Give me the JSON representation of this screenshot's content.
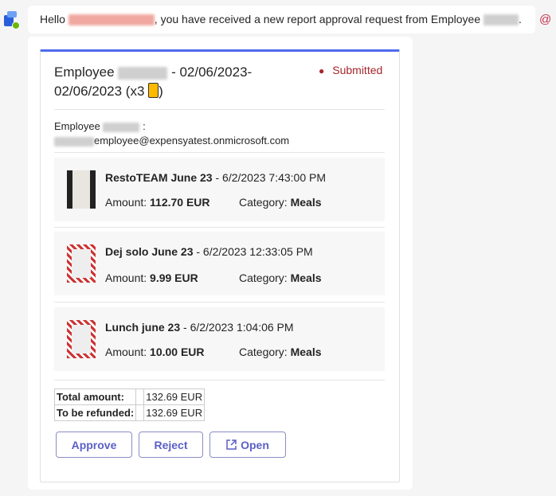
{
  "message": {
    "greeting": "Hello",
    "text": ", you have received a new report approval request from Employee",
    "end": ".",
    "mention_icon": "@"
  },
  "report": {
    "title_prefix": "Employee",
    "title_dates": " - 02/06/2023-02/06/2023 (x3",
    "title_end": ")",
    "status": "Submitted",
    "status_color": "#a4262c",
    "employee_label": "Employee",
    "employee_colon": ":",
    "email_suffix": "employee@expensyatest.onmicrosoft.com",
    "expenses": [
      {
        "name": "RestoTEAM June 23",
        "date": " - 6/2/2023 7:43:00 PM",
        "amount_label": "Amount:",
        "amount": "112.70 EUR",
        "category_label": "Category:",
        "category": "Meals"
      },
      {
        "name": "Dej solo June 23",
        "date": " - 6/2/2023 12:33:05 PM",
        "amount_label": "Amount:",
        "amount": "9.99 EUR",
        "category_label": "Category:",
        "category": "Meals"
      },
      {
        "name": "Lunch june 23",
        "date": " - 6/2/2023 1:04:06 PM",
        "amount_label": "Amount:",
        "amount": "10.00 EUR",
        "category_label": "Category:",
        "category": "Meals"
      }
    ],
    "totals": [
      {
        "label": "Total amount:",
        "value": "132.69 EUR"
      },
      {
        "label": "To be refunded:",
        "value": "132.69 EUR"
      }
    ],
    "actions": {
      "approve": "Approve",
      "reject": "Reject",
      "open": "Open"
    }
  },
  "colors": {
    "accent": "#4f6bed",
    "button": "#5b5fc7"
  }
}
